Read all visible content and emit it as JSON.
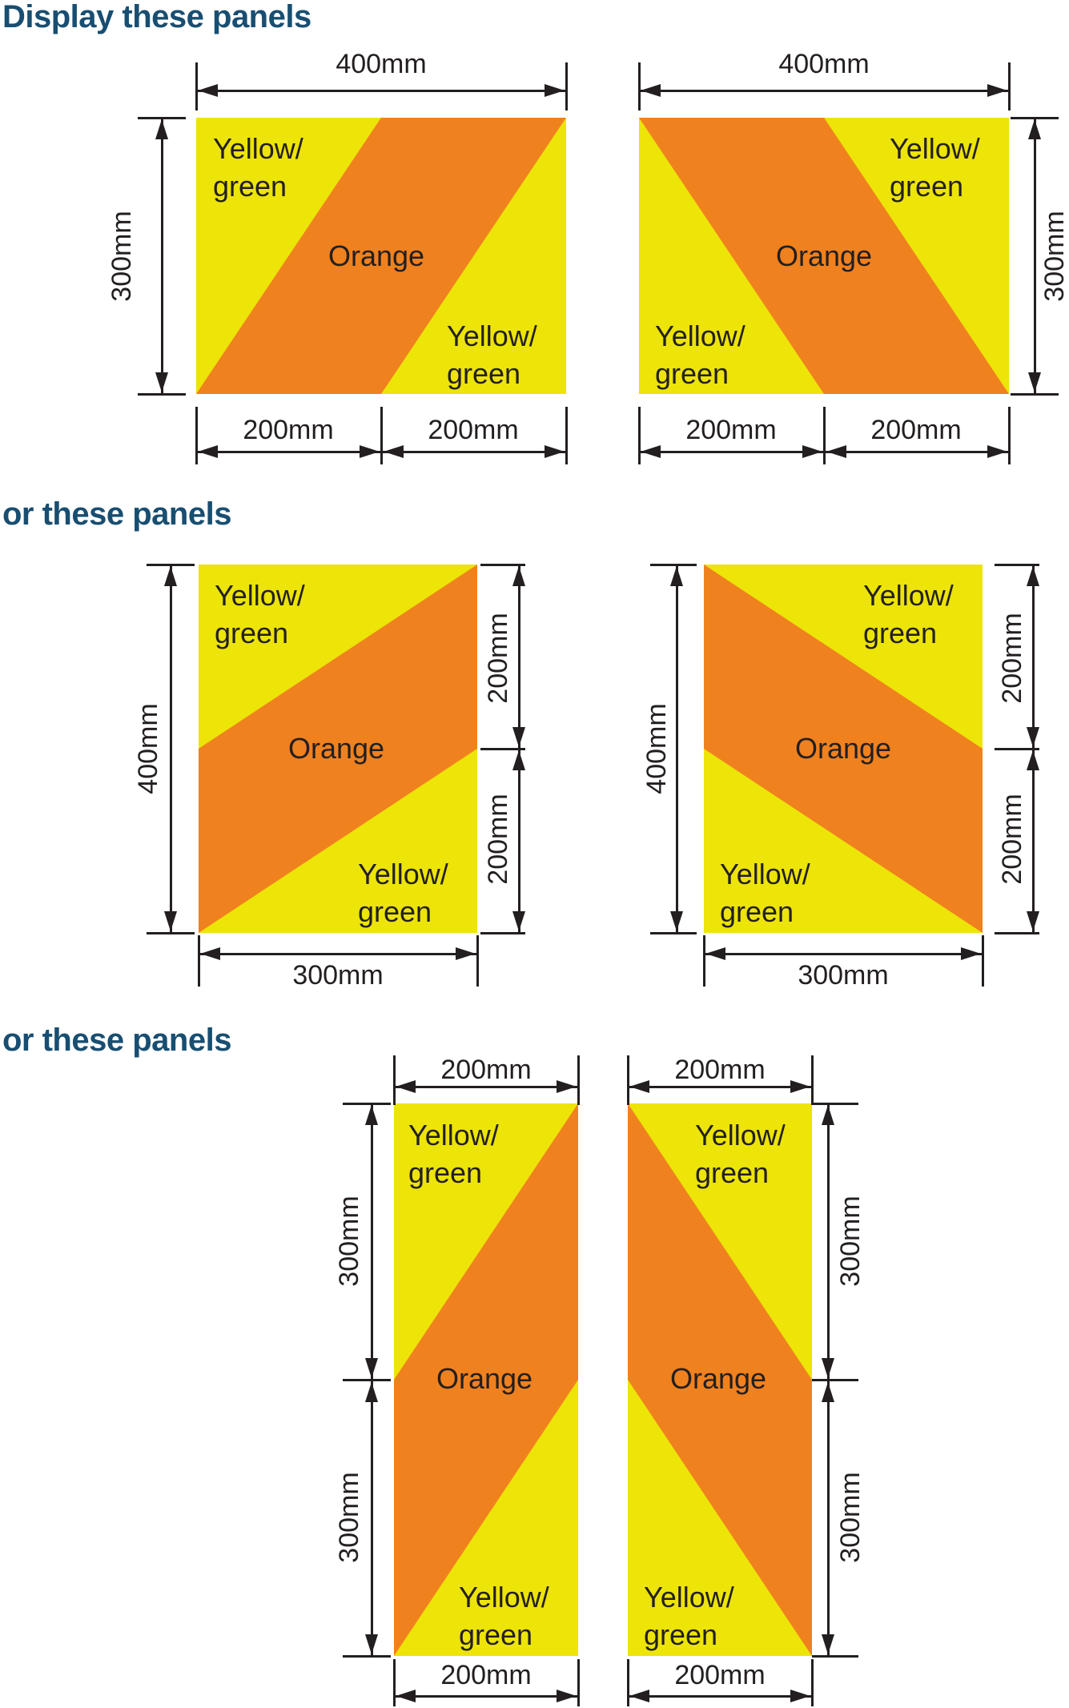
{
  "headings": {
    "first": "Display these panels",
    "second": "or these panels",
    "third": "or these panels"
  },
  "region_labels": {
    "yellow_green": [
      "Yellow/",
      "green"
    ],
    "orange": "Orange"
  },
  "colors": {
    "yellow_green": "#ede408",
    "orange": "#f0811f",
    "ink": "#231f20",
    "heading_blue": "#184e71",
    "background": "#ffffff"
  },
  "panels": [
    {
      "id": "panel-1",
      "dims": {
        "top": "400mm",
        "left": "300mm",
        "bottom": [
          "200mm",
          "200mm"
        ]
      }
    },
    {
      "id": "panel-2",
      "dims": {
        "top": "400mm",
        "right": "300mm",
        "bottom": [
          "200mm",
          "200mm"
        ]
      }
    },
    {
      "id": "panel-3",
      "dims": {
        "left": "400mm",
        "right": [
          "200mm",
          "200mm"
        ],
        "bottom": "300mm"
      }
    },
    {
      "id": "panel-4",
      "dims": {
        "left": "400mm",
        "right": [
          "200mm",
          "200mm"
        ],
        "bottom": "300mm"
      }
    },
    {
      "id": "panel-5",
      "dims": {
        "top": "200mm",
        "left": [
          "300mm",
          "300mm"
        ],
        "bottom": "200mm"
      }
    },
    {
      "id": "panel-6",
      "dims": {
        "top": "200mm",
        "right": [
          "300mm",
          "300mm"
        ],
        "bottom": "200mm"
      }
    }
  ]
}
